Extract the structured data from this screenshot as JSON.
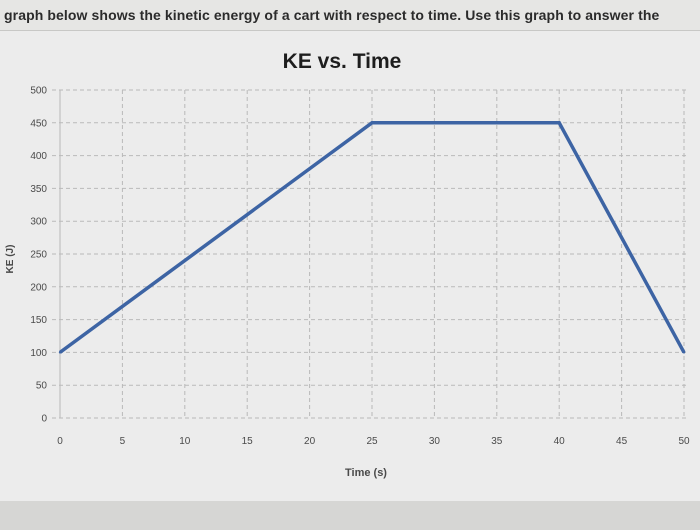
{
  "question": {
    "text": "graph below shows the kinetic energy of a cart with respect to time. Use this graph to answer the"
  },
  "colors": {
    "line": "#3d64a4",
    "grid": "#b9b9b9",
    "axis_text": "#4a4a4a",
    "title": "#1e1e1e"
  },
  "chart_data": {
    "type": "line",
    "title": "KE vs. Time",
    "xlabel": "Time (s)",
    "ylabel": "KE (J)",
    "xlim": [
      0,
      50
    ],
    "ylim": [
      0,
      500
    ],
    "x_ticks": [
      0,
      5,
      10,
      15,
      20,
      25,
      30,
      35,
      40,
      45,
      50
    ],
    "y_ticks": [
      0,
      50,
      100,
      150,
      200,
      250,
      300,
      350,
      400,
      450,
      500
    ],
    "grid": true,
    "series": [
      {
        "x": [
          0,
          25,
          40,
          50
        ],
        "y": [
          100,
          450,
          450,
          100
        ]
      }
    ]
  }
}
